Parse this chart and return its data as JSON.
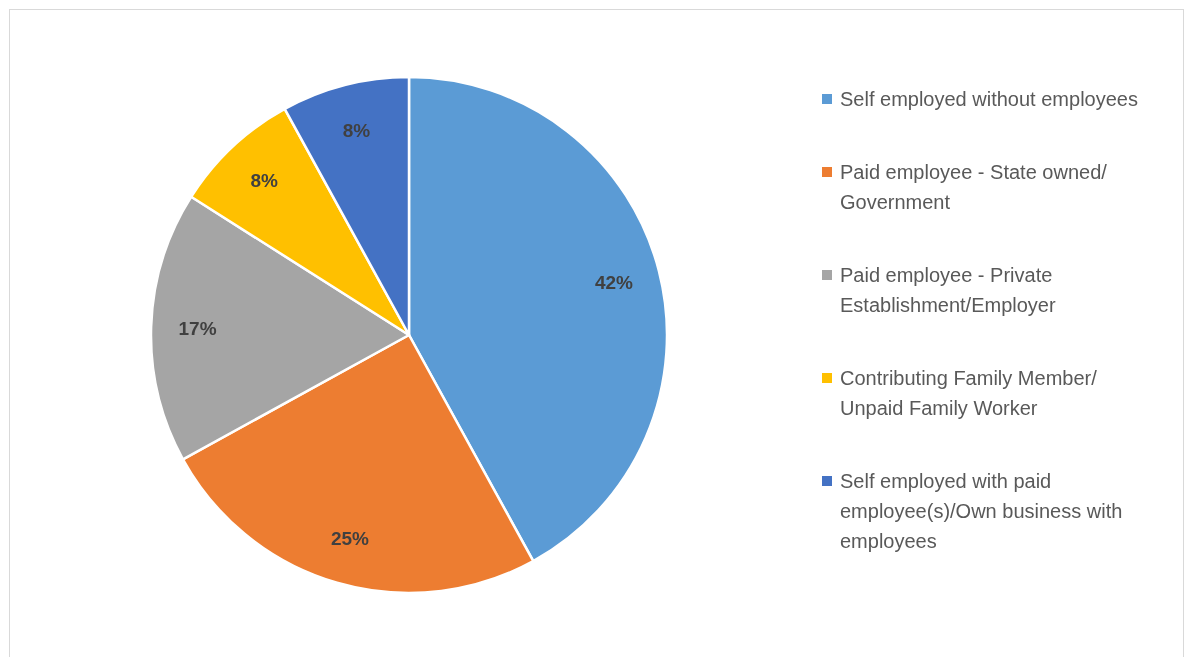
{
  "chart_data": {
    "type": "pie",
    "categories": [
      "Self employed without employees",
      "Paid employee - State owned/ Government",
      "Paid employee - Private Establishment/Employer",
      "Contributing Family Member/ Unpaid Family Worker",
      "Self employed with paid employee(s)/Own business with employees"
    ],
    "values": [
      42,
      25,
      17,
      8,
      8
    ],
    "colors": [
      "#5b9bd5",
      "#ed7d31",
      "#a5a5a5",
      "#ffc000",
      "#4472c4"
    ],
    "value_labels": [
      "42%",
      "25%",
      "17%",
      "8%",
      "8%"
    ],
    "legend": "right"
  }
}
